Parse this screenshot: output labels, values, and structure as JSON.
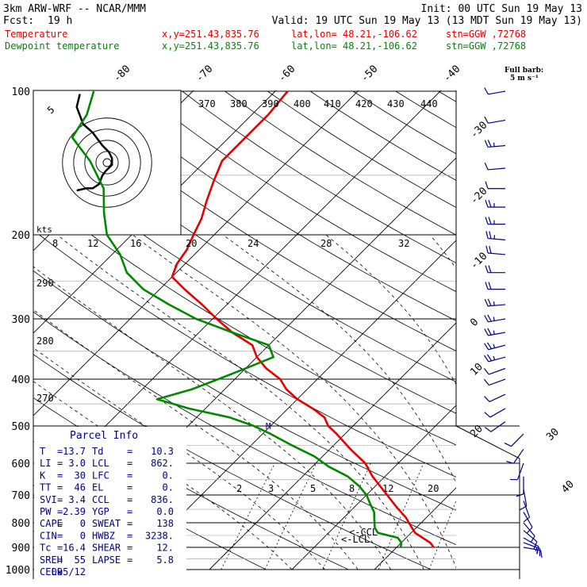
{
  "header": {
    "model": "3km ARW-WRF -- NCAR/MMM",
    "init": "Init: 00 UTC Sun 19 May 13",
    "fcst_label": "Fcst:",
    "fcst_value": "19 h",
    "valid": "Valid: 19 UTC Sun 19 May 13 (13 MDT Sun 19 May 13)",
    "temp_label": "Temperature",
    "dew_label": "Dewpoint temperature",
    "xy": "x,y=251.43,835.76",
    "latlon": "lat,lon= 48.21,-106.62",
    "stn": "stn=GGW ,72768",
    "barb_key_1": "Full barb:",
    "barb_key_2": "5 m s⁻¹"
  },
  "colors": {
    "temperature": "#e60000",
    "dewpoint": "#008800",
    "background": "#ffffff",
    "lines": "#000000"
  },
  "parcel_info": {
    "title": "Parcel Info",
    "rows": [
      [
        "T",
        "=",
        "13.7",
        "Td",
        "=",
        "10.3"
      ],
      [
        "LI",
        "=",
        "3.0",
        "LCL",
        "=",
        "862."
      ],
      [
        "K",
        "=",
        "30",
        "LFC",
        "=",
        "0."
      ],
      [
        "TT",
        "=",
        "46",
        "EL",
        "=",
        "0."
      ],
      [
        "SVI",
        "=",
        "3.4",
        "CCL",
        "=",
        "836."
      ],
      [
        "PW",
        "=",
        "2.39",
        "YGP",
        "=",
        "0.0"
      ],
      [
        "CAPE",
        "=",
        "0",
        "SWEAT",
        "=",
        "138"
      ],
      [
        "CIN",
        "=",
        "0",
        "HWBZ",
        "=",
        "3238."
      ],
      [
        "Tc",
        "=",
        "16.4",
        "SHEAR",
        "=",
        "12."
      ],
      [
        "SREH",
        "=",
        "55",
        "LAPSE",
        "=",
        "5.8"
      ],
      [
        "CELL",
        "=",
        "095/12",
        "",
        "",
        ""
      ]
    ]
  },
  "chart_data": {
    "type": "line",
    "subtype": "skew-T log-p sounding",
    "pressure_levels": [
      100,
      200,
      300,
      400,
      500,
      600,
      700,
      800,
      900,
      1000
    ],
    "skewed_temp_labels": [
      "-80",
      "-70",
      "-60",
      "-50",
      "-40",
      "-30",
      "-20",
      "-10",
      "0",
      "10",
      "20",
      "30",
      "40"
    ],
    "theta_labels": [
      "370",
      "380",
      "390",
      "400",
      "410",
      "420",
      "430",
      "440",
      "290",
      "280",
      "270"
    ],
    "mixing_ratio_labels": [
      "2",
      "3",
      "5",
      "8",
      "12",
      "20"
    ],
    "hodograph": {
      "axis_label": "kts",
      "ring_label": "5",
      "scale_labels": [
        "8",
        "12",
        "16",
        "20",
        "24",
        "28",
        "32"
      ]
    },
    "lcl_label": "<-LCL",
    "ccl_label": "<-CCL",
    "m_label": "M",
    "series": [
      {
        "name": "Temperature",
        "color": "#e60000",
        "points": [
          [
            900,
            14.5
          ],
          [
            880,
            13.5
          ],
          [
            860,
            12
          ],
          [
            840,
            10.5
          ],
          [
            820,
            9.5
          ],
          [
            780,
            7.5
          ],
          [
            740,
            5
          ],
          [
            700,
            2.5
          ],
          [
            640,
            -1.5
          ],
          [
            600,
            -4
          ],
          [
            560,
            -7.5
          ],
          [
            520,
            -11
          ],
          [
            500,
            -13
          ],
          [
            480,
            -14.5
          ],
          [
            460,
            -17
          ],
          [
            440,
            -20
          ],
          [
            420,
            -22.5
          ],
          [
            400,
            -24.5
          ],
          [
            380,
            -27.5
          ],
          [
            360,
            -30
          ],
          [
            340,
            -32
          ],
          [
            320,
            -36
          ],
          [
            300,
            -39.5
          ],
          [
            280,
            -43
          ],
          [
            260,
            -47
          ],
          [
            245,
            -50
          ],
          [
            230,
            -51
          ],
          [
            215,
            -51.5
          ],
          [
            200,
            -52.5
          ],
          [
            185,
            -53.5
          ],
          [
            170,
            -55
          ],
          [
            155,
            -56.5
          ],
          [
            140,
            -58
          ],
          [
            125,
            -58
          ],
          [
            112,
            -58
          ],
          [
            100,
            -58.5
          ]
        ]
      },
      {
        "name": "Dewpoint temperature",
        "color": "#008800",
        "points": [
          [
            900,
            10.5
          ],
          [
            880,
            10
          ],
          [
            860,
            9
          ],
          [
            840,
            6
          ],
          [
            820,
            5
          ],
          [
            790,
            4
          ],
          [
            760,
            3
          ],
          [
            730,
            1.5
          ],
          [
            700,
            0
          ],
          [
            670,
            -2
          ],
          [
            640,
            -4.5
          ],
          [
            610,
            -8
          ],
          [
            580,
            -11
          ],
          [
            550,
            -15
          ],
          [
            520,
            -19
          ],
          [
            500,
            -22
          ],
          [
            480,
            -26
          ],
          [
            460,
            -32
          ],
          [
            440,
            -37
          ],
          [
            420,
            -34
          ],
          [
            400,
            -32
          ],
          [
            380,
            -30
          ],
          [
            360,
            -28
          ],
          [
            340,
            -30
          ],
          [
            320,
            -36
          ],
          [
            300,
            -42
          ],
          [
            280,
            -47
          ],
          [
            260,
            -52
          ],
          [
            240,
            -56
          ],
          [
            220,
            -59
          ],
          [
            200,
            -63
          ],
          [
            180,
            -66
          ],
          [
            160,
            -69
          ],
          [
            140,
            -74
          ],
          [
            125,
            -79
          ],
          [
            112,
            -80
          ],
          [
            100,
            -82
          ]
        ]
      }
    ],
    "hodograph_points": [
      [
        -3,
        16
      ],
      [
        -3.5,
        13
      ],
      [
        -2.5,
        9
      ],
      [
        -1,
        7
      ],
      [
        0.5,
        4
      ],
      [
        1.5,
        2.5
      ],
      [
        2,
        1
      ],
      [
        2,
        -0.5
      ],
      [
        1,
        -2
      ],
      [
        0.5,
        -3
      ],
      [
        0,
        -5
      ],
      [
        -1,
        -6
      ],
      [
        -2,
        -6
      ],
      [
        -3.5,
        -6.5
      ]
    ],
    "wind_barbs": [
      {
        "p": 100,
        "dir": 260,
        "spd": 10
      },
      {
        "p": 115,
        "dir": 260,
        "spd": 10
      },
      {
        "p": 130,
        "dir": 265,
        "spd": 15
      },
      {
        "p": 145,
        "dir": 265,
        "spd": 10
      },
      {
        "p": 160,
        "dir": 270,
        "spd": 10
      },
      {
        "p": 175,
        "dir": 270,
        "spd": 15
      },
      {
        "p": 190,
        "dir": 270,
        "spd": 15
      },
      {
        "p": 205,
        "dir": 275,
        "spd": 15
      },
      {
        "p": 220,
        "dir": 275,
        "spd": 20
      },
      {
        "p": 240,
        "dir": 270,
        "spd": 20
      },
      {
        "p": 260,
        "dir": 270,
        "spd": 20
      },
      {
        "p": 280,
        "dir": 265,
        "spd": 15
      },
      {
        "p": 300,
        "dir": 260,
        "spd": 15
      },
      {
        "p": 320,
        "dir": 260,
        "spd": 15
      },
      {
        "p": 340,
        "dir": 255,
        "spd": 15
      },
      {
        "p": 360,
        "dir": 255,
        "spd": 15
      },
      {
        "p": 380,
        "dir": 250,
        "spd": 10
      },
      {
        "p": 400,
        "dir": 250,
        "spd": 10
      },
      {
        "p": 430,
        "dir": 245,
        "spd": 10
      },
      {
        "p": 460,
        "dir": 240,
        "spd": 10
      },
      {
        "p": 490,
        "dir": 235,
        "spd": 10
      },
      {
        "p": 520,
        "dir": 225,
        "spd": 10
      },
      {
        "p": 560,
        "dir": 215,
        "spd": 10
      },
      {
        "p": 600,
        "dir": 200,
        "spd": 10
      },
      {
        "p": 640,
        "dir": 180,
        "spd": 10
      },
      {
        "p": 680,
        "dir": 170,
        "spd": 10
      },
      {
        "p": 720,
        "dir": 160,
        "spd": 10
      },
      {
        "p": 760,
        "dir": 150,
        "spd": 10
      },
      {
        "p": 800,
        "dir": 140,
        "spd": 10
      },
      {
        "p": 830,
        "dir": 130,
        "spd": 10
      },
      {
        "p": 860,
        "dir": 120,
        "spd": 5
      },
      {
        "p": 880,
        "dir": 110,
        "spd": 5
      },
      {
        "p": 900,
        "dir": 100,
        "spd": 5
      }
    ]
  }
}
